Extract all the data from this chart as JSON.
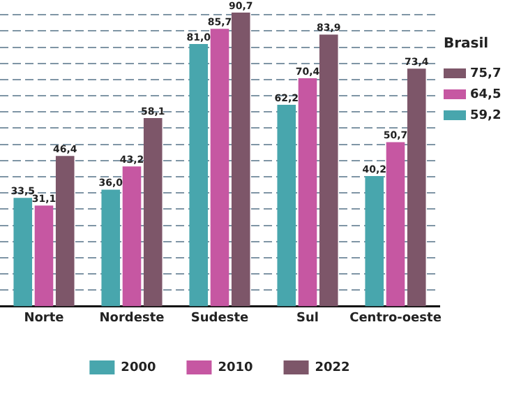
{
  "chart_data": {
    "type": "bar",
    "categories": [
      "Norte",
      "Nordeste",
      "Sudeste",
      "Sul",
      "Centro-oeste"
    ],
    "series": [
      {
        "name": "2000",
        "color": "#48a6ad",
        "values": [
          33.5,
          36.0,
          81.0,
          62.2,
          40.2
        ],
        "value_labels": [
          "33,5",
          "36,0",
          "81,0",
          "62,2",
          "40,2"
        ]
      },
      {
        "name": "2010",
        "color": "#c657a2",
        "values": [
          31.1,
          43.2,
          85.7,
          70.4,
          50.7
        ],
        "value_labels": [
          "31,1",
          "43,2",
          "85,7",
          "70,4",
          "50,7"
        ]
      },
      {
        "name": "2022",
        "color": "#7d5669",
        "values": [
          46.4,
          58.1,
          90.7,
          83.9,
          73.4
        ],
        "value_labels": [
          "46,4",
          "58,1",
          "90,7",
          "83,9",
          "73,4"
        ]
      }
    ],
    "ylim": [
      0,
      92
    ],
    "yticks": [
      {
        "value": 5,
        "label": null
      },
      {
        "value": 10,
        "label": null
      },
      {
        "value": 15,
        "label": null
      },
      {
        "value": 20,
        "label": null
      },
      {
        "value": 25,
        "label": null
      },
      {
        "value": 30,
        "label": null
      },
      {
        "value": 35,
        "label": null
      },
      {
        "value": 40,
        "label": null
      },
      {
        "value": 45,
        "label": null
      },
      {
        "value": 50,
        "label": null
      },
      {
        "value": 55,
        "label": null
      },
      {
        "value": 60,
        "label": null
      },
      {
        "value": 65,
        "label": null
      },
      {
        "value": 70,
        "label": null
      },
      {
        "value": 75,
        "label": null
      },
      {
        "value": 80,
        "label": null
      },
      {
        "value": 85,
        "label": null
      },
      {
        "value": 90,
        "label": null
      }
    ],
    "tick_labels": "x",
    "grid": "y",
    "legend": "bottom",
    "annotations": [
      "Brasil",
      "75,7",
      "64,5",
      "59,2"
    ]
  }
}
